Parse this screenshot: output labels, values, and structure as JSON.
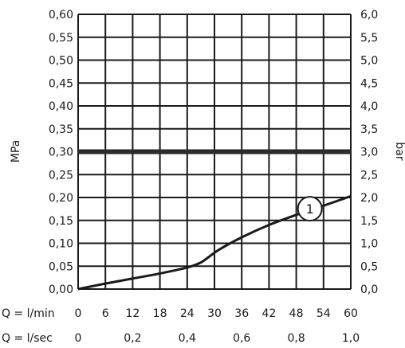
{
  "chart_data": {
    "type": "line",
    "title": "",
    "left_axis": {
      "label": "MPa",
      "ticks": [
        "0,00",
        "0,05",
        "0,10",
        "0,15",
        "0,20",
        "0,25",
        "0,30",
        "0,35",
        "0,40",
        "0,45",
        "0,50",
        "0,55",
        "0,60"
      ],
      "ylim": [
        0,
        0.6
      ]
    },
    "right_axis": {
      "label": "bar",
      "ticks": [
        "0,0",
        "0,5",
        "1,0",
        "1,5",
        "2,0",
        "2,5",
        "3,0",
        "3,5",
        "4,0",
        "4,5",
        "5,0",
        "5,5",
        "6,0"
      ],
      "ylim": [
        0,
        6
      ]
    },
    "x_axis_rows": [
      {
        "label": "Q = l/min",
        "ticks": [
          "0",
          "6",
          "12",
          "18",
          "24",
          "30",
          "36",
          "42",
          "48",
          "54",
          "60"
        ],
        "positions": [
          0,
          6,
          12,
          18,
          24,
          30,
          36,
          42,
          48,
          54,
          60
        ]
      },
      {
        "label": "Q = l/sec",
        "ticks": [
          "0",
          "0,2",
          "0,4",
          "0,6",
          "0,8",
          "1,0"
        ],
        "positions": [
          0,
          12,
          24,
          36,
          48,
          60
        ]
      }
    ],
    "xlim": [
      0,
      60
    ],
    "grid": true,
    "reference_line": {
      "y": 0.3
    },
    "series": [
      {
        "x": [
          0,
          6,
          12,
          18,
          24,
          27,
          29,
          31,
          36,
          42,
          48,
          54,
          60
        ],
        "y": [
          0,
          0.012,
          0.023,
          0.034,
          0.047,
          0.058,
          0.072,
          0.086,
          0.113,
          0.14,
          0.162,
          0.182,
          0.203
        ]
      }
    ],
    "annotation": {
      "text": "1",
      "x": 51,
      "y": 0.172
    }
  }
}
